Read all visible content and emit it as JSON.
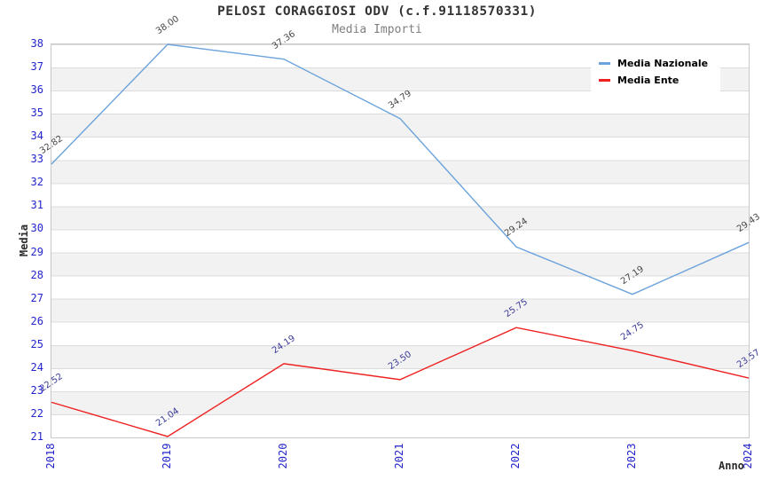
{
  "title": "PELOSI CORAGGIOSI ODV (c.f.91118570331)",
  "subtitle": "Media Importi",
  "legend": {
    "position": "top-right",
    "items": [
      "Media Nazionale",
      "Media Ente"
    ]
  },
  "colors": {
    "tick_label": "#2323cc",
    "gridline": "#dcdcdc",
    "stripe": "#f2f2f2",
    "plot_border": "#c8c8c8",
    "background": "#ffffff",
    "title_text": "#333333",
    "subtitle_text": "#7f7f7f"
  },
  "chart_data": {
    "type": "line",
    "x": [
      2018,
      2019,
      2020,
      2021,
      2022,
      2023,
      2024
    ],
    "xlabel": "Anno",
    "ylabel": "Media",
    "ylim": [
      21,
      38
    ],
    "y_tick_step": 1,
    "grid": "horizontal-stripes-and-lines",
    "legend_position": "top-right",
    "x_tick_rotation": -90,
    "point_label_rotation": -34,
    "point_label_format": "2-decimals",
    "series": [
      {
        "name": "Media Nazionale",
        "color": "#6ba3dc",
        "label_color": "#474747",
        "values": [
          32.82,
          38.0,
          37.36,
          34.79,
          29.24,
          27.19,
          29.43
        ]
      },
      {
        "name": "Media Ente",
        "color": "#ee2020",
        "label_color": "#3a3a99",
        "values": [
          22.52,
          21.04,
          24.19,
          23.5,
          25.75,
          24.75,
          23.57
        ]
      }
    ]
  }
}
